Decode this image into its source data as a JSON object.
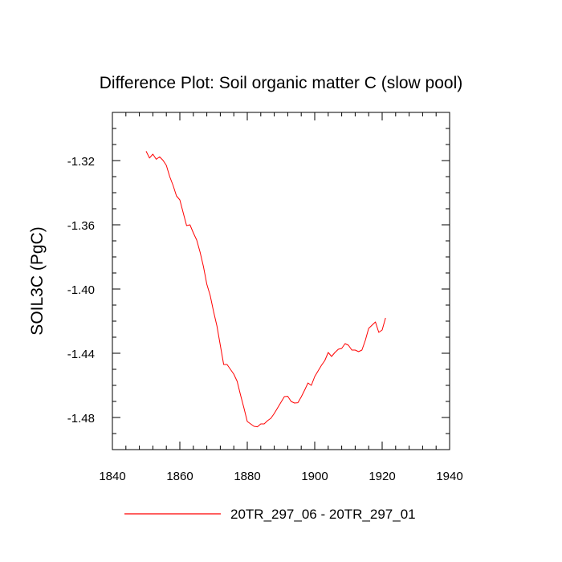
{
  "chart_data": {
    "type": "line",
    "title": "Difference Plot: Soil organic matter C (slow pool)",
    "xlabel": "",
    "ylabel": "SOIL3C  (PgC)",
    "xlim": [
      1840,
      1940
    ],
    "ylim": [
      -1.5,
      -1.29
    ],
    "x_major_ticks": [
      1840,
      1860,
      1880,
      1900,
      1920,
      1940
    ],
    "x_tick_labels": [
      "1840",
      "1860",
      "1880",
      "1900",
      "1920",
      "1940"
    ],
    "x_minor_step": 4,
    "y_major_ticks": [
      -1.32,
      -1.36,
      -1.4,
      -1.44,
      -1.48
    ],
    "y_tick_labels": [
      "-1.32",
      "-1.36",
      "-1.40",
      "-1.44",
      "-1.48"
    ],
    "y_minor_step": 0.01,
    "grid": false,
    "legend_position": "bottom-center",
    "series": [
      {
        "name": "20TR_297_06 - 20TR_297_01",
        "color": "#ff0000",
        "x": [
          1850,
          1851,
          1852,
          1853,
          1854,
          1855,
          1856,
          1857,
          1858,
          1859,
          1860,
          1861,
          1862,
          1863,
          1864,
          1865,
          1866,
          1867,
          1868,
          1869,
          1870,
          1871,
          1872,
          1873,
          1874,
          1875,
          1876,
          1877,
          1878,
          1879,
          1880,
          1881,
          1882,
          1883,
          1884,
          1885,
          1886,
          1887,
          1888,
          1889,
          1890,
          1891,
          1892,
          1893,
          1894,
          1895,
          1896,
          1897,
          1898,
          1899,
          1900,
          1901,
          1902,
          1903,
          1904,
          1905,
          1906,
          1907,
          1908,
          1909,
          1910,
          1911,
          1912,
          1913,
          1914,
          1915,
          1916,
          1917,
          1918,
          1919,
          1920,
          1921
        ],
        "values": [
          -1.3142,
          -1.3184,
          -1.316,
          -1.3192,
          -1.3177,
          -1.3198,
          -1.323,
          -1.33,
          -1.3355,
          -1.342,
          -1.3445,
          -1.3525,
          -1.3605,
          -1.36,
          -1.365,
          -1.3695,
          -1.377,
          -1.386,
          -1.397,
          -1.404,
          -1.414,
          -1.423,
          -1.435,
          -1.447,
          -1.447,
          -1.45,
          -1.453,
          -1.4575,
          -1.466,
          -1.474,
          -1.4825,
          -1.484,
          -1.4855,
          -1.4858,
          -1.484,
          -1.484,
          -1.482,
          -1.4805,
          -1.4775,
          -1.474,
          -1.4705,
          -1.467,
          -1.4668,
          -1.47,
          -1.471,
          -1.4708,
          -1.4672,
          -1.463,
          -1.4585,
          -1.46,
          -1.4545,
          -1.451,
          -1.4475,
          -1.4445,
          -1.4395,
          -1.442,
          -1.4395,
          -1.4375,
          -1.437,
          -1.434,
          -1.435,
          -1.438,
          -1.438,
          -1.439,
          -1.438,
          -1.432,
          -1.4245,
          -1.4225,
          -1.4205,
          -1.427,
          -1.4255,
          -1.418
        ]
      }
    ]
  }
}
